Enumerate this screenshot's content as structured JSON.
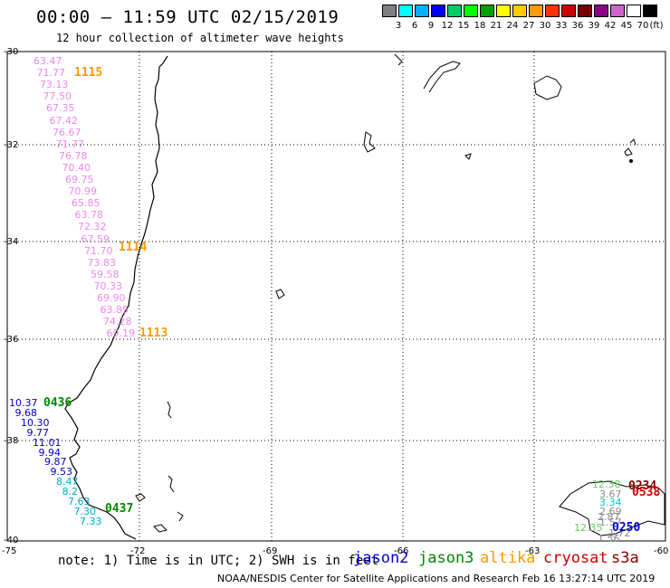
{
  "title": "00:00 – 11:59 UTC 02/15/2019",
  "subtitle": "12 hour collection of altimeter wave heights",
  "legend": {
    "unit": "(ft)",
    "colors": [
      "#7f7f7f",
      "#00ffff",
      "#00b0ff",
      "#0000ff",
      "#00cc66",
      "#00ff00",
      "#00a000",
      "#ffff00",
      "#ffcc00",
      "#ff9900",
      "#ff3300",
      "#cc0000",
      "#7a0000",
      "#8b008b",
      "#cc66cc",
      "#ffffff",
      "#000000"
    ],
    "labels": [
      "3",
      "6",
      "9",
      "12",
      "15",
      "18",
      "21",
      "24",
      "27",
      "30",
      "33",
      "36",
      "39",
      "42",
      "45",
      "70"
    ]
  },
  "axes": {
    "lat_labels": [
      "-30",
      "-32",
      "-34",
      "-36",
      "-38",
      "-40"
    ],
    "lon_labels": [
      "-75",
      "-72",
      "-69",
      "-66",
      "-63",
      "-60"
    ]
  },
  "tracks": {
    "altika_north": {
      "color": "#ee88ee",
      "values": [
        "63.47",
        "71.77",
        "73.13",
        "77.50",
        "67.35",
        "67.42",
        "76.67",
        "71.77",
        "76.78",
        "70.40",
        "69.75",
        "70.99",
        "65.85",
        "63.78",
        "72.32",
        "67.59",
        "71.70",
        "73.83",
        "59.58",
        "70.33",
        "69.90",
        "63.85",
        "74.28",
        "69.19"
      ]
    },
    "jason_south": {
      "values": [
        "10.37",
        "9.68",
        "10.30",
        "9.77",
        "11.01",
        "9.94",
        "9.87",
        "9.53",
        "8.47",
        "8.2",
        "7.63",
        "7.30",
        "7.33"
      ],
      "colors": [
        "#0000cc",
        "#0000cc",
        "#0000cc",
        "#0000cc",
        "#0000cc",
        "#0000cc",
        "#0000cc",
        "#0000cc",
        "#00aacc",
        "#00aacc",
        "#00aacc",
        "#00aacc",
        "#00aacc"
      ]
    },
    "se_cluster": {
      "values": [
        "12.38",
        "3.67",
        "3.34",
        "2.69",
        "2.87",
        "1.57",
        "12.35",
        "1.56",
        "1.72"
      ]
    }
  },
  "passes": {
    "p1115": "1115",
    "p1114": "1114",
    "p1113": "1113",
    "p0436": "0436",
    "p0437": "0437",
    "p0234": "0234",
    "p0538": "0538",
    "p0250": "0250"
  },
  "note": "note: 1) Time is in UTC; 2) SWH is in feet",
  "satellites": [
    {
      "name": "jason2",
      "color": "#0000cc"
    },
    {
      "name": "jason3",
      "color": "#008800"
    },
    {
      "name": "altika",
      "color": "#ff9900"
    },
    {
      "name": "cryosat",
      "color": "#cc0000"
    },
    {
      "name": "s3a",
      "color": "#880000"
    }
  ],
  "footer": "NOAA/NESDIS Center for Satellite Applications and Research   Feb 16 13:27:14 UTC 2019"
}
